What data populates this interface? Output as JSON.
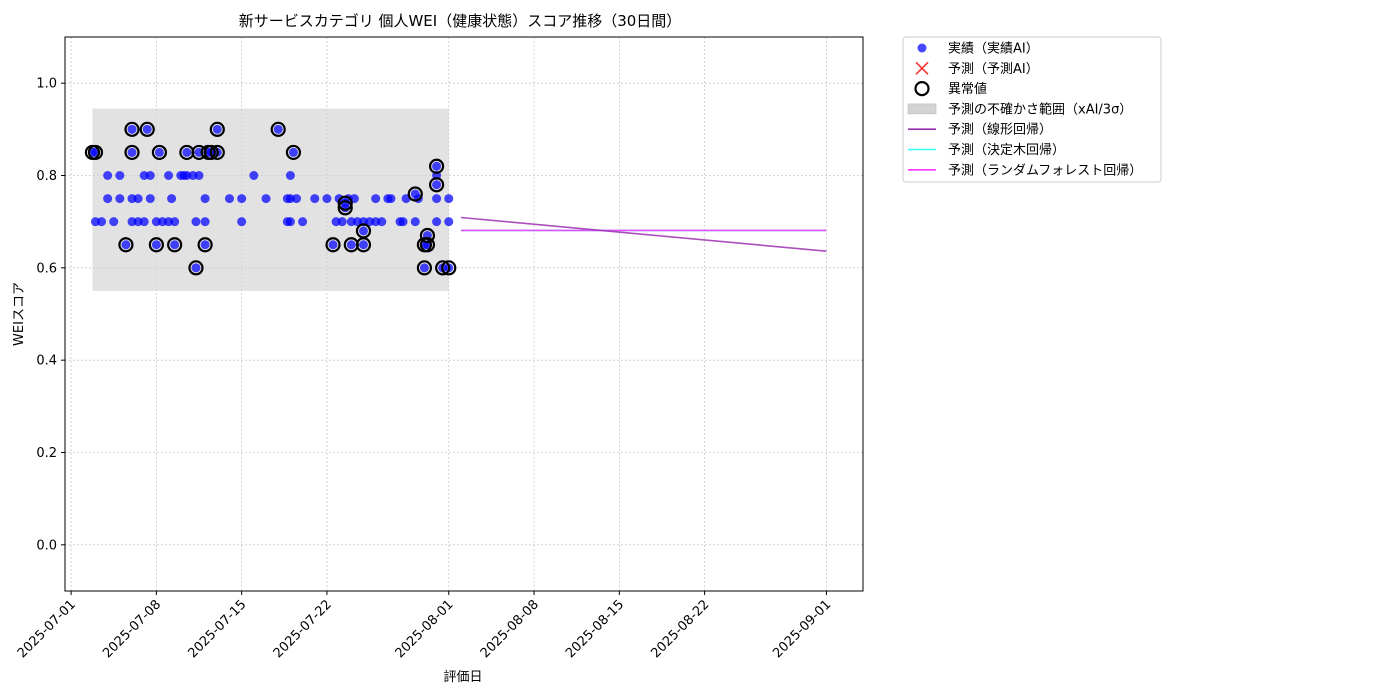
{
  "chart_data": {
    "type": "scatter",
    "title": "新サービスカテゴリ 個人WEI（健康状態）スコア推移（30日間）",
    "xlabel": "評価日",
    "ylabel": "WEIスコア",
    "xlim": [
      "2025-06-30T12:00",
      "2025-09-04"
    ],
    "ylim": [
      -0.1,
      1.1
    ],
    "grid": true,
    "legend_position": "outside-top-right",
    "x_ticks": [
      "2025-07-01",
      "2025-07-08",
      "2025-07-15",
      "2025-07-22",
      "2025-08-01",
      "2025-08-08",
      "2025-08-15",
      "2025-08-22",
      "2025-09-01"
    ],
    "y_ticks": [
      "0.0",
      "0.2",
      "0.4",
      "0.6",
      "0.8",
      "1.0"
    ],
    "legend": [
      {
        "label": "実績（実績AI）",
        "marker": "dot",
        "color": "#0000ff"
      },
      {
        "label": "予測（予測AI）",
        "marker": "x",
        "color": "#ff3333"
      },
      {
        "label": "異常値",
        "marker": "ring",
        "color": "#000000"
      },
      {
        "label": "予測の不確かさ範囲（xAI/3σ）",
        "marker": "box",
        "color": "#d3d3d3"
      },
      {
        "label": "予測（線形回帰）",
        "marker": "line",
        "color": "#9b30b0"
      },
      {
        "label": "予測（決定木回帰）",
        "marker": "line",
        "color": "#33ffff"
      },
      {
        "label": "予測（ランダムフォレスト回帰）",
        "marker": "line",
        "color": "#ff33ff"
      }
    ],
    "actual_points": [
      [
        "2025-07-02T18:00",
        0.85
      ],
      [
        "2025-07-03T00:00",
        0.85
      ],
      [
        "2025-07-03T00:00",
        0.7
      ],
      [
        "2025-07-03T12:00",
        0.7
      ],
      [
        "2025-07-04T00:00",
        0.8
      ],
      [
        "2025-07-04T00:00",
        0.75
      ],
      [
        "2025-07-04T12:00",
        0.7
      ],
      [
        "2025-07-05T00:00",
        0.8
      ],
      [
        "2025-07-05T00:00",
        0.75
      ],
      [
        "2025-07-05T12:00",
        0.65
      ],
      [
        "2025-07-06T00:00",
        0.9
      ],
      [
        "2025-07-06T00:00",
        0.85
      ],
      [
        "2025-07-06T00:00",
        0.75
      ],
      [
        "2025-07-06T00:00",
        0.7
      ],
      [
        "2025-07-06T12:00",
        0.75
      ],
      [
        "2025-07-06T12:00",
        0.7
      ],
      [
        "2025-07-07T00:00",
        0.8
      ],
      [
        "2025-07-07T00:00",
        0.7
      ],
      [
        "2025-07-07T06:00",
        0.9
      ],
      [
        "2025-07-07T12:00",
        0.8
      ],
      [
        "2025-07-07T12:00",
        0.75
      ],
      [
        "2025-07-08T00:00",
        0.65
      ],
      [
        "2025-07-08T00:00",
        0.7
      ],
      [
        "2025-07-08T06:00",
        0.85
      ],
      [
        "2025-07-08T12:00",
        0.7
      ],
      [
        "2025-07-09T00:00",
        0.7
      ],
      [
        "2025-07-09T00:00",
        0.8
      ],
      [
        "2025-07-09T06:00",
        0.75
      ],
      [
        "2025-07-09T12:00",
        0.65
      ],
      [
        "2025-07-09T12:00",
        0.7
      ],
      [
        "2025-07-10T00:00",
        0.8
      ],
      [
        "2025-07-10T06:00",
        0.8
      ],
      [
        "2025-07-10T12:00",
        0.85
      ],
      [
        "2025-07-10T12:00",
        0.8
      ],
      [
        "2025-07-11T00:00",
        0.8
      ],
      [
        "2025-07-11T06:00",
        0.7
      ],
      [
        "2025-07-11T06:00",
        0.6
      ],
      [
        "2025-07-11T12:00",
        0.85
      ],
      [
        "2025-07-11T12:00",
        0.8
      ],
      [
        "2025-07-12T00:00",
        0.75
      ],
      [
        "2025-07-12T00:00",
        0.7
      ],
      [
        "2025-07-12T00:00",
        0.65
      ],
      [
        "2025-07-12T06:00",
        0.85
      ],
      [
        "2025-07-12T12:00",
        0.85
      ],
      [
        "2025-07-13T00:00",
        0.9
      ],
      [
        "2025-07-13T00:00",
        0.85
      ],
      [
        "2025-07-14T00:00",
        0.75
      ],
      [
        "2025-07-15T00:00",
        0.75
      ],
      [
        "2025-07-15T00:00",
        0.7
      ],
      [
        "2025-07-16T00:00",
        0.8
      ],
      [
        "2025-07-17T00:00",
        0.75
      ],
      [
        "2025-07-18T00:00",
        0.9
      ],
      [
        "2025-07-18T18:00",
        0.75
      ],
      [
        "2025-07-18T18:00",
        0.7
      ],
      [
        "2025-07-19T00:00",
        0.8
      ],
      [
        "2025-07-19T00:00",
        0.75
      ],
      [
        "2025-07-19T00:00",
        0.7
      ],
      [
        "2025-07-19T06:00",
        0.85
      ],
      [
        "2025-07-19T12:00",
        0.75
      ],
      [
        "2025-07-20T00:00",
        0.7
      ],
      [
        "2025-07-21T00:00",
        0.75
      ],
      [
        "2025-07-22T00:00",
        0.75
      ],
      [
        "2025-07-22T12:00",
        0.65
      ],
      [
        "2025-07-22T18:00",
        0.7
      ],
      [
        "2025-07-23T00:00",
        0.75
      ],
      [
        "2025-07-23T06:00",
        0.7
      ],
      [
        "2025-07-23T12:00",
        0.74
      ],
      [
        "2025-07-23T12:00",
        0.73
      ],
      [
        "2025-07-23T18:00",
        0.75
      ],
      [
        "2025-07-24T00:00",
        0.7
      ],
      [
        "2025-07-24T00:00",
        0.65
      ],
      [
        "2025-07-24T06:00",
        0.75
      ],
      [
        "2025-07-24T12:00",
        0.7
      ],
      [
        "2025-07-25T00:00",
        0.68
      ],
      [
        "2025-07-25T00:00",
        0.7
      ],
      [
        "2025-07-25T00:00",
        0.65
      ],
      [
        "2025-07-25T12:00",
        0.7
      ],
      [
        "2025-07-26T00:00",
        0.7
      ],
      [
        "2025-07-26T00:00",
        0.75
      ],
      [
        "2025-07-26T12:00",
        0.7
      ],
      [
        "2025-07-27T00:00",
        0.75
      ],
      [
        "2025-07-27T06:00",
        0.75
      ],
      [
        "2025-07-28T00:00",
        0.7
      ],
      [
        "2025-07-28T06:00",
        0.7
      ],
      [
        "2025-07-28T12:00",
        0.75
      ],
      [
        "2025-07-29T06:00",
        0.76
      ],
      [
        "2025-07-29T06:00",
        0.7
      ],
      [
        "2025-07-29T12:00",
        0.75
      ],
      [
        "2025-07-30T00:00",
        0.65
      ],
      [
        "2025-07-30T00:00",
        0.6
      ],
      [
        "2025-07-30T06:00",
        0.67
      ],
      [
        "2025-07-30T06:00",
        0.65
      ],
      [
        "2025-07-31T00:00",
        0.82
      ],
      [
        "2025-07-31T00:00",
        0.8
      ],
      [
        "2025-07-31T00:00",
        0.78
      ],
      [
        "2025-07-31T00:00",
        0.75
      ],
      [
        "2025-07-31T00:00",
        0.7
      ],
      [
        "2025-07-31T12:00",
        0.6
      ],
      [
        "2025-08-01T00:00",
        0.75
      ],
      [
        "2025-08-01T00:00",
        0.7
      ],
      [
        "2025-08-01T00:00",
        0.6
      ]
    ],
    "outlier_points": [
      [
        "2025-07-02T18:00",
        0.85
      ],
      [
        "2025-07-03T00:00",
        0.85
      ],
      [
        "2025-07-05T12:00",
        0.65
      ],
      [
        "2025-07-06T00:00",
        0.9
      ],
      [
        "2025-07-06T00:00",
        0.85
      ],
      [
        "2025-07-07T06:00",
        0.9
      ],
      [
        "2025-07-08T00:00",
        0.65
      ],
      [
        "2025-07-08T06:00",
        0.85
      ],
      [
        "2025-07-09T12:00",
        0.65
      ],
      [
        "2025-07-10T12:00",
        0.85
      ],
      [
        "2025-07-11T06:00",
        0.6
      ],
      [
        "2025-07-11T12:00",
        0.85
      ],
      [
        "2025-07-12T00:00",
        0.65
      ],
      [
        "2025-07-12T06:00",
        0.85
      ],
      [
        "2025-07-12T12:00",
        0.85
      ],
      [
        "2025-07-13T00:00",
        0.9
      ],
      [
        "2025-07-13T00:00",
        0.85
      ],
      [
        "2025-07-18T00:00",
        0.9
      ],
      [
        "2025-07-19T06:00",
        0.85
      ],
      [
        "2025-07-22T12:00",
        0.65
      ],
      [
        "2025-07-23T12:00",
        0.74
      ],
      [
        "2025-07-23T12:00",
        0.73
      ],
      [
        "2025-07-24T00:00",
        0.65
      ],
      [
        "2025-07-25T00:00",
        0.68
      ],
      [
        "2025-07-25T00:00",
        0.65
      ],
      [
        "2025-07-29T06:00",
        0.76
      ],
      [
        "2025-07-30T00:00",
        0.65
      ],
      [
        "2025-07-30T00:00",
        0.6
      ],
      [
        "2025-07-30T06:00",
        0.67
      ],
      [
        "2025-07-30T06:00",
        0.65
      ],
      [
        "2025-07-31T00:00",
        0.82
      ],
      [
        "2025-07-31T00:00",
        0.78
      ],
      [
        "2025-07-31T12:00",
        0.6
      ],
      [
        "2025-08-01T00:00",
        0.6
      ]
    ],
    "uncertainty_band": {
      "x": [
        "2025-07-02T18:00",
        "2025-08-01T00:00"
      ],
      "y": [
        0.55,
        0.945
      ]
    },
    "linear_regression": {
      "x": [
        "2025-08-02",
        "2025-09-01"
      ],
      "y": [
        0.709,
        0.636
      ]
    },
    "decision_tree_regression": {
      "x": [
        "2025-08-02",
        "2025-09-01"
      ],
      "y": [
        0.681,
        0.681
      ]
    },
    "random_forest_regression": {
      "x": [
        "2025-08-02",
        "2025-09-01"
      ],
      "y": [
        0.681,
        0.681
      ]
    }
  }
}
